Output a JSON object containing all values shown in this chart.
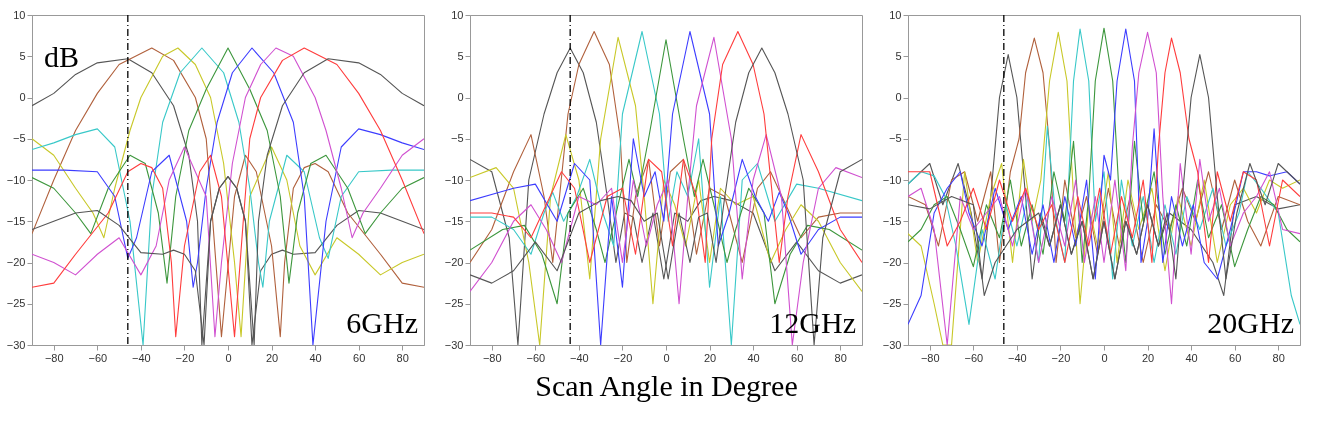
{
  "chart_data": [
    {
      "type": "line",
      "ylabel": "dB",
      "annotations": [
        "6GHz"
      ],
      "xlim": [
        -90,
        90
      ],
      "ylim": [
        -30,
        10
      ],
      "xticks": [
        -80,
        -60,
        -40,
        -20,
        0,
        20,
        40,
        60,
        80
      ],
      "yticks": [
        -30,
        -25,
        -20,
        -15,
        -10,
        -5,
        0,
        5,
        10
      ],
      "ref_lines": [
        {
          "axis": "x",
          "value": -46,
          "color": "#000000",
          "line_style": "dashed"
        }
      ],
      "series": [
        {
          "color": "#555555",
          "x": [
            -90,
            -80,
            -70,
            -60,
            -46,
            -35,
            -25,
            -18,
            -14,
            -12,
            -8,
            -4,
            0,
            4,
            8,
            11,
            15,
            20,
            25,
            30,
            40,
            50,
            60,
            70,
            80,
            90
          ],
          "values": [
            -1,
            0.5,
            2.8,
            4.2,
            4.7,
            3,
            -1,
            -7,
            -15,
            -30,
            -15,
            -11,
            -9.6,
            -11,
            -15,
            -30,
            -21,
            -19,
            -18.5,
            -19,
            -18.8,
            -15.5,
            -13.7,
            -14,
            -15,
            -16
          ]
        },
        {
          "color": "#b0603c",
          "x": [
            -90,
            -80,
            -70,
            -60,
            -50,
            -35,
            -25,
            -15,
            -10,
            -7,
            -3,
            3,
            8,
            13,
            20,
            24,
            26,
            30,
            35,
            40,
            46,
            55,
            70,
            80,
            90
          ],
          "values": [
            -16.5,
            -10,
            -4,
            0.5,
            4,
            6,
            4.5,
            0,
            -5,
            -15,
            -29,
            -12,
            -7,
            -9,
            -18,
            -29,
            -20,
            -11,
            -8.5,
            -8,
            -9,
            -14,
            -19,
            -22.5,
            -23
          ]
        },
        {
          "color": "#c8c828",
          "x": [
            -90,
            -80,
            -70,
            -62,
            -57,
            -52,
            -45,
            -40,
            -30,
            -23,
            -15,
            -8,
            -2,
            3,
            6,
            10,
            20,
            27,
            33,
            40,
            50,
            60,
            70,
            80,
            90
          ],
          "values": [
            -5,
            -7,
            -11,
            -14,
            -17,
            -11,
            -4,
            0,
            5,
            6,
            4,
            0,
            -8,
            -20,
            -29,
            -12,
            -6,
            -10,
            -18,
            -21.5,
            -17,
            -19,
            -21.5,
            -20,
            -19
          ]
        },
        {
          "color": "#38c8c8",
          "x": [
            -90,
            -80,
            -70,
            -60,
            -52,
            -45,
            -41,
            -39,
            -35,
            -30,
            -22,
            -12,
            -2,
            5,
            10,
            14,
            16,
            19,
            27,
            35,
            42,
            46,
            52,
            60,
            75,
            90
          ],
          "values": [
            -6.3,
            -5.5,
            -4.5,
            -3.8,
            -6,
            -15,
            -25,
            -30,
            -12,
            -3,
            3,
            6,
            3,
            -3,
            -11,
            -20,
            -23,
            -15,
            -7,
            -9,
            -17,
            -19.5,
            -12,
            -9,
            -8.8,
            -8.8
          ]
        },
        {
          "color": "#3c963c",
          "x": [
            -90,
            -80,
            -70,
            -63,
            -55,
            -45,
            -38,
            -32,
            -28,
            -24,
            -18,
            -10,
            0,
            10,
            18,
            24,
            28,
            32,
            38,
            45,
            55,
            63,
            70,
            80,
            90
          ],
          "values": [
            -9.7,
            -11,
            -14,
            -16.5,
            -11,
            -7,
            -8,
            -14,
            -22.5,
            -12,
            -4,
            1,
            6,
            1,
            -4,
            -12,
            -22.5,
            -14,
            -8,
            -7,
            -11,
            -16.5,
            -14,
            -11,
            -9.7
          ]
        },
        {
          "color": "#3c3cff",
          "x": [
            -90,
            -75,
            -60,
            -52,
            -46,
            -42,
            -35,
            -27,
            -19,
            -16,
            -14,
            -10,
            -5,
            2,
            11,
            21,
            30,
            35,
            39,
            41,
            45,
            52,
            60,
            70,
            80,
            90
          ],
          "values": [
            -8.8,
            -8.8,
            -9,
            -12,
            -19.5,
            -17,
            -9,
            -7,
            -15,
            -23,
            -20,
            -11,
            -3,
            3,
            6,
            3,
            -3,
            -12,
            -30,
            -25,
            -15,
            -6,
            -3.8,
            -4.5,
            -5.5,
            -6.3
          ]
        },
        {
          "color": "#d050d0",
          "x": [
            -90,
            -80,
            -70,
            -60,
            -50,
            -40,
            -33,
            -27,
            -20,
            -10,
            -6,
            -3,
            2,
            8,
            15,
            22,
            30,
            40,
            45,
            52,
            57,
            62,
            70,
            80,
            90
          ],
          "values": [
            -19,
            -20,
            -21.5,
            -19,
            -17,
            -21.5,
            -18,
            -10,
            -6,
            -12,
            -29,
            -20,
            -8,
            0,
            4,
            6,
            5,
            0,
            -4,
            -11,
            -17,
            -14,
            -11,
            -7,
            -5
          ]
        },
        {
          "color": "#ff3c3c",
          "x": [
            -90,
            -80,
            -70,
            -55,
            -46,
            -40,
            -35,
            -30,
            -26,
            -24,
            -20,
            -13,
            -8,
            -3,
            3,
            7,
            10,
            15,
            25,
            35,
            50,
            60,
            70,
            80,
            90
          ],
          "values": [
            -23,
            -22.5,
            -19,
            -14,
            -9,
            -8,
            -8.5,
            -11,
            -20,
            -29,
            -18,
            -9,
            -7,
            -12,
            -29,
            -15,
            -5,
            0,
            4.5,
            6,
            4,
            0.5,
            -4,
            -10,
            -16.5
          ]
        },
        {
          "color": "#555555",
          "x": [
            -90,
            -80,
            -70,
            -60,
            -50,
            -40,
            -30,
            -25,
            -20,
            -15,
            -11,
            -8,
            -4,
            0,
            4,
            8,
            12,
            14,
            18,
            25,
            35,
            46,
            60,
            70,
            80,
            90
          ],
          "values": [
            -16,
            -15,
            -14,
            -13.7,
            -15.5,
            -18.8,
            -19,
            -18.5,
            -19,
            -21,
            -30,
            -15,
            -11,
            -9.6,
            -11,
            -15,
            -30,
            -15,
            -7,
            -1,
            3,
            4.7,
            4.2,
            2.8,
            0.5,
            -1
          ]
        }
      ]
    },
    {
      "type": "line",
      "xlabel": "Scan Angle in Degree",
      "annotations": [
        "12GHz"
      ],
      "xlim": [
        -90,
        90
      ],
      "ylim": [
        -30,
        10
      ],
      "xticks": [
        -80,
        -60,
        -40,
        -20,
        0,
        20,
        40,
        60,
        80
      ],
      "yticks": [
        -30,
        -25,
        -20,
        -15,
        -10,
        -5,
        0,
        5,
        10
      ],
      "ref_lines": [
        {
          "axis": "x",
          "value": -44,
          "color": "#000000",
          "line_style": "dashed"
        }
      ],
      "series": [
        {
          "color": "#555555",
          "x": [
            -90,
            -80,
            -72,
            -68,
            -63,
            -56,
            -50,
            -44,
            -38,
            -32,
            -27,
            -23,
            -19,
            -15,
            -11,
            -6,
            -1,
            4,
            10,
            16,
            22,
            30,
            40,
            50,
            60,
            70,
            80,
            90
          ],
          "values": [
            -7.5,
            -9,
            -17,
            -30,
            -10,
            -2,
            3,
            6,
            3,
            -3,
            -12,
            -20,
            -14,
            -14.5,
            -20,
            -14,
            -22,
            -14,
            -15,
            -12.5,
            -12,
            -12.5,
            -14,
            -21,
            -17.5,
            -21,
            -22.5,
            -21.5
          ]
        },
        {
          "color": "#b0603c",
          "x": [
            -90,
            -80,
            -70,
            -62,
            -56,
            -52,
            -45,
            -40,
            -33,
            -26,
            -21,
            -18,
            -14,
            -8,
            -3,
            2,
            8,
            14,
            20,
            27,
            35,
            42,
            48,
            55,
            62,
            70,
            80,
            90
          ],
          "values": [
            -20,
            -16,
            -9,
            -4.5,
            -12,
            -20,
            -2,
            4,
            8,
            4,
            -5,
            -20,
            -12,
            -7.5,
            -18,
            -9,
            -7.5,
            -19,
            -11,
            -12,
            -20,
            -11,
            -9,
            -13,
            -17,
            -14.5,
            -14,
            -14
          ]
        },
        {
          "color": "#c8c828",
          "x": [
            -90,
            -78,
            -70,
            -63,
            -58,
            -53,
            -46,
            -40,
            -35,
            -30,
            -22,
            -14,
            -10,
            -6,
            -1,
            4,
            9,
            15,
            20,
            25,
            32,
            40,
            48,
            55,
            62,
            70,
            80,
            90
          ],
          "values": [
            -9.7,
            -8.5,
            -11,
            -20,
            -30,
            -12,
            -4.5,
            -10,
            -22,
            -5,
            7.3,
            -1,
            -12,
            -25,
            -10,
            -13,
            -18,
            -10,
            -20,
            -11,
            -13,
            -12,
            -20,
            -16,
            -13,
            -15,
            -20,
            -23.5
          ]
        },
        {
          "color": "#38c8c8",
          "x": [
            -90,
            -80,
            -70,
            -62,
            -56,
            -52,
            -47,
            -41,
            -35,
            -29,
            -24,
            -20,
            -11,
            -3,
            1,
            5,
            10,
            15,
            20,
            25,
            30,
            35,
            42,
            50,
            60,
            70,
            90
          ],
          "values": [
            -14.5,
            -14.5,
            -16,
            -19,
            -14,
            -11.5,
            -15,
            -12,
            -7.5,
            -14,
            -18,
            -2,
            8,
            -2,
            -15,
            -9,
            -12,
            -5,
            -23,
            -12,
            -30,
            -10,
            -8,
            -15,
            -10.5,
            -11,
            -12.5
          ]
        },
        {
          "color": "#3c963c",
          "x": [
            -90,
            -75,
            -65,
            -57,
            -50,
            -45,
            -38,
            -32,
            -28,
            -22,
            -17,
            -13,
            -8,
            0,
            8,
            13,
            17,
            22,
            28,
            32,
            38,
            45,
            50,
            57,
            65,
            75,
            90
          ],
          "values": [
            -18.5,
            -16,
            -15.5,
            -19,
            -25,
            -14,
            -11,
            -16,
            -20,
            -13,
            -7.5,
            -12,
            -5,
            7,
            -5,
            -12,
            -7.5,
            -13,
            -20,
            -16,
            -11,
            -14,
            -25,
            -19,
            -15.5,
            -16,
            -18.5
          ]
        },
        {
          "color": "#3c3cff",
          "x": [
            -90,
            -70,
            -60,
            -50,
            -42,
            -35,
            -30,
            -25,
            -20,
            -15,
            -10,
            -5,
            -1,
            3,
            11,
            20,
            24,
            29,
            35,
            41,
            47,
            52,
            56,
            62,
            70,
            80,
            90
          ],
          "values": [
            -12.5,
            -11,
            -10.5,
            -15,
            -8,
            -10,
            -30,
            -12,
            -23,
            -5,
            -12,
            -9,
            -15,
            -2,
            8,
            -2,
            -18,
            -14,
            -7.5,
            -12,
            -15,
            -11.5,
            -14,
            -19,
            -16,
            -14.5,
            -14.5
          ]
        },
        {
          "color": "#d050d0",
          "x": [
            -90,
            -80,
            -70,
            -62,
            -55,
            -48,
            -40,
            -32,
            -25,
            -20,
            -15,
            -9,
            -4,
            1,
            6,
            10,
            14,
            22,
            30,
            35,
            40,
            46,
            53,
            58,
            63,
            70,
            78,
            90
          ],
          "values": [
            -23.5,
            -20,
            -15,
            -13,
            -16,
            -20,
            -12,
            -13,
            -11,
            -20,
            -10,
            -18,
            -13,
            -10,
            -25,
            -12,
            -1,
            7.3,
            -5,
            -22,
            -10,
            -4.5,
            -12,
            -30,
            -20,
            -11,
            -8.5,
            -9.7
          ]
        },
        {
          "color": "#ff3c3c",
          "x": [
            -90,
            -80,
            -70,
            -62,
            -55,
            -48,
            -42,
            -35,
            -27,
            -20,
            -14,
            -8,
            -2,
            3,
            8,
            14,
            18,
            21,
            26,
            33,
            40,
            45,
            52,
            56,
            62,
            70,
            80,
            90
          ],
          "values": [
            -14,
            -14,
            -14.5,
            -17,
            -13,
            -9,
            -11,
            -20,
            -12,
            -11,
            -19,
            -7.5,
            -9,
            -18,
            -7.5,
            -12,
            -20,
            -5,
            4,
            8,
            4,
            -2,
            -20,
            -12,
            -4.5,
            -9,
            -16,
            -20
          ]
        },
        {
          "color": "#555555",
          "x": [
            -90,
            -80,
            -70,
            -60,
            -50,
            -40,
            -30,
            -22,
            -16,
            -10,
            -4,
            1,
            6,
            11,
            15,
            19,
            23,
            27,
            32,
            38,
            44,
            50,
            56,
            63,
            68,
            72,
            80,
            90
          ],
          "values": [
            -21.5,
            -22.5,
            -21,
            -17.5,
            -21,
            -14,
            -12.5,
            -12,
            -12.5,
            -15,
            -14,
            -22,
            -14,
            -20,
            -14.5,
            -14,
            -20,
            -12,
            -3,
            3,
            6,
            3,
            -2,
            -10,
            -30,
            -17,
            -9,
            -7.5
          ]
        }
      ]
    },
    {
      "type": "line",
      "annotations": [
        "20GHz"
      ],
      "xlim": [
        -90,
        90
      ],
      "ylim": [
        -30,
        10
      ],
      "xticks": [
        -80,
        -60,
        -40,
        -20,
        0,
        20,
        40,
        60,
        80
      ],
      "yticks": [
        -30,
        -25,
        -20,
        -15,
        -10,
        -5,
        0,
        5,
        10
      ],
      "ref_lines": [
        {
          "axis": "x",
          "value": -46,
          "color": "#000000",
          "line_style": "dashed"
        }
      ],
      "series": [
        {
          "color": "#555555",
          "x": [
            -90,
            -80,
            -74,
            -67,
            -61,
            -56,
            -52,
            -48,
            -44,
            -40,
            -36,
            -33,
            -29,
            -25,
            -20,
            -15,
            -10,
            -5,
            0,
            5,
            10,
            15,
            20,
            25,
            30,
            40,
            50,
            55,
            60,
            70,
            80,
            90
          ],
          "values": [
            -10.5,
            -8,
            -13,
            -8,
            -14,
            -22,
            -12,
            0,
            5.2,
            0,
            -12,
            -22,
            -14,
            -18,
            -13,
            -19,
            -15,
            -22,
            -15,
            -22,
            -15,
            -19,
            -13,
            -18,
            -14,
            -16,
            -20,
            -24,
            -13,
            -12,
            -13.5,
            -13
          ]
        },
        {
          "color": "#b0603c",
          "x": [
            -90,
            -82,
            -76,
            -70,
            -64,
            -58,
            -52,
            -48,
            -43,
            -39,
            -36,
            -32,
            -28,
            -25,
            -22,
            -18,
            -13,
            -8,
            -3,
            2,
            7,
            12,
            18,
            24,
            30,
            36,
            42,
            48,
            54,
            60,
            66,
            72,
            80,
            90
          ],
          "values": [
            -12,
            -13,
            -18,
            -10,
            -9,
            -15,
            -9,
            -20,
            -9,
            -5,
            3,
            7.2,
            3,
            -6,
            -20,
            -10,
            -17,
            -12,
            -19,
            -11,
            -18,
            -12,
            -20,
            -13,
            -16,
            -11,
            -15,
            -9,
            -16,
            -10,
            -15,
            -18,
            -12,
            -13
          ]
        },
        {
          "color": "#c8c828",
          "x": [
            -90,
            -84,
            -78,
            -74,
            -70,
            -64,
            -58,
            -52,
            -47,
            -42,
            -37,
            -33,
            -29,
            -25,
            -21,
            -17,
            -14,
            -11,
            -7,
            -3,
            2,
            6,
            11,
            16,
            22,
            28,
            34,
            40,
            46,
            52,
            58,
            64,
            70,
            76,
            82,
            90
          ],
          "values": [
            -16.5,
            -18,
            -25,
            -30,
            -30,
            -9,
            -20,
            -12,
            -8,
            -20,
            -7.5,
            -15,
            -10,
            2,
            7.9,
            2,
            -12,
            -25,
            -13,
            -18,
            -9,
            -20,
            -10,
            -16,
            -11,
            -21,
            -12,
            -18,
            -10,
            -20,
            -13,
            -11,
            -14,
            -10,
            -11,
            -10
          ]
        },
        {
          "color": "#38c8c8",
          "x": [
            -90,
            -84,
            -78,
            -73,
            -68,
            -62,
            -56,
            -50,
            -45,
            -40,
            -35,
            -30,
            -26,
            -22,
            -18,
            -14,
            -11,
            -7,
            -4,
            0,
            4,
            8,
            13,
            18,
            23,
            28,
            33,
            38,
            44,
            50,
            56,
            62,
            66,
            72,
            80,
            86,
            90
          ],
          "values": [
            -10.5,
            -9,
            -9.5,
            -12,
            -18,
            -27.5,
            -16,
            -22,
            -13,
            -18,
            -12,
            -20,
            -3.5,
            -15,
            -20,
            2,
            8.3,
            2,
            -15,
            -9,
            -22,
            -10,
            -18,
            -12,
            -20,
            -13,
            -19,
            -12,
            -16,
            -11,
            -18,
            -14,
            -9,
            -11,
            -14,
            -24,
            -27.5
          ]
        },
        {
          "color": "#3c963c",
          "x": [
            -90,
            -84,
            -78,
            -72,
            -66,
            -60,
            -54,
            -48,
            -43,
            -38,
            -33,
            -28,
            -23,
            -18,
            -14,
            -10,
            -7,
            -4,
            0,
            4,
            7,
            10,
            14,
            18,
            23,
            28,
            33,
            38,
            43,
            48,
            54,
            60,
            66,
            72,
            78,
            84,
            90
          ],
          "values": [
            -17.5,
            -16,
            -13,
            -12,
            -16,
            -20.5,
            -13,
            -17,
            -10,
            -18,
            -13,
            -19,
            -9,
            -15,
            -5.3,
            -20,
            -12,
            2,
            8.4,
            2,
            -12,
            -20,
            -5.3,
            -15,
            -9,
            -19,
            -13,
            -18,
            -10,
            -17,
            -13,
            -20.5,
            -16,
            -12,
            -13,
            -16,
            -17.5
          ]
        },
        {
          "color": "#3c3cff",
          "x": [
            -90,
            -84,
            -78,
            -72,
            -66,
            -62,
            -56,
            -50,
            -44,
            -38,
            -33,
            -28,
            -23,
            -18,
            -13,
            -8,
            -4,
            0,
            3,
            6,
            10,
            14,
            17,
            20,
            23,
            27,
            31,
            36,
            41,
            46,
            52,
            58,
            64,
            70,
            76,
            84,
            90
          ],
          "values": [
            -27.5,
            -24,
            -14,
            -11,
            -9,
            -14,
            -18,
            -11,
            -16,
            -12,
            -19,
            -13,
            -20,
            -12,
            -18,
            -10,
            -22,
            -7,
            -10,
            2,
            8.3,
            2,
            -20,
            -15,
            -3.8,
            -20,
            -12,
            -18,
            -13,
            -20,
            -22,
            -16,
            -9,
            -9,
            -9.5,
            -9,
            -10.5
          ]
        },
        {
          "color": "#d050d0",
          "x": [
            -90,
            -84,
            -78,
            -72,
            -66,
            -60,
            -54,
            -48,
            -42,
            -36,
            -30,
            -24,
            -18,
            -13,
            -9,
            -4,
            0,
            5,
            10,
            13,
            16,
            20,
            24,
            27,
            31,
            35,
            40,
            44,
            48,
            53,
            58,
            64,
            70,
            76,
            82,
            90
          ],
          "values": [
            -12,
            -11,
            -16,
            -30,
            -12,
            -16,
            -14,
            -12,
            -18,
            -11,
            -20,
            -12,
            -18,
            -10,
            -20,
            -12,
            -20,
            -10,
            -21,
            -6,
            3,
            7.9,
            3,
            -12,
            -25,
            -8,
            -19,
            -7.5,
            -15,
            -11,
            -18,
            -14,
            -12,
            -9,
            -16,
            -16.5
          ]
        },
        {
          "color": "#ff3c3c",
          "x": [
            -90,
            -80,
            -72,
            -66,
            -60,
            -54,
            -48,
            -42,
            -36,
            -30,
            -24,
            -18,
            -12,
            -7,
            -2,
            3,
            8,
            13,
            18,
            22,
            25,
            28,
            31,
            35,
            39,
            43,
            48,
            52,
            58,
            64,
            70,
            76,
            82,
            90
          ],
          "values": [
            -9,
            -9,
            -18,
            -15,
            -11,
            -16,
            -10,
            -15,
            -11,
            -16,
            -13,
            -20,
            -12,
            -18,
            -11,
            -19,
            -12,
            -17,
            -10,
            -20,
            -6,
            3,
            7.2,
            3,
            -5,
            -9,
            -20,
            -9,
            -15,
            -9,
            -10,
            -18,
            -10,
            -12
          ]
        },
        {
          "color": "#555555",
          "x": [
            -90,
            -80,
            -70,
            -60,
            -55,
            -50,
            -40,
            -30,
            -25,
            -20,
            -15,
            -10,
            -5,
            0,
            5,
            10,
            15,
            20,
            25,
            29,
            33,
            36,
            40,
            44,
            48,
            52,
            56,
            61,
            67,
            74,
            80,
            90
          ],
          "values": [
            -13,
            -13.5,
            -12,
            -13,
            -24,
            -20,
            -16,
            -14,
            -18,
            -13,
            -19,
            -15,
            -22,
            -15,
            -22,
            -15,
            -19,
            -13,
            -18,
            -14,
            -22,
            -12,
            0,
            5.2,
            0,
            -12,
            -22,
            -14,
            -8,
            -13,
            -8,
            -10.5
          ]
        }
      ]
    }
  ]
}
